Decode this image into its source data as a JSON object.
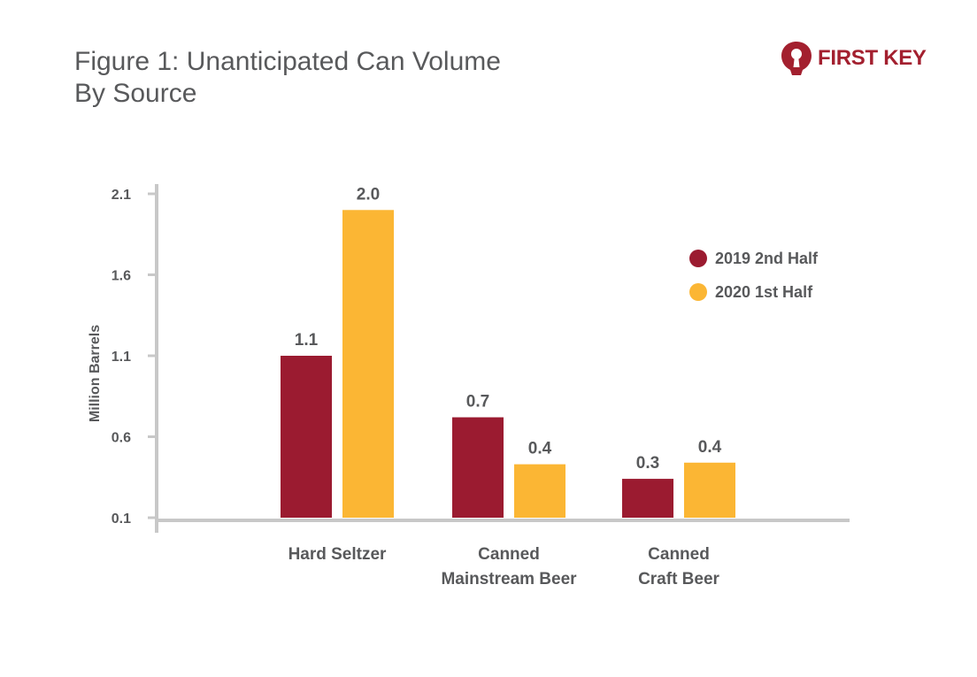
{
  "header": {
    "title_line1": "Figure 1: Unanticipated Can Volume",
    "title_line2": "By Source"
  },
  "brand": {
    "name": "FIRST KEY",
    "color": "#a3202f",
    "icon": "keyhole-icon"
  },
  "chart_data": {
    "type": "bar",
    "title": "Figure 1: Unanticipated Can Volume By Source",
    "ylabel": "Million Barrels",
    "xlabel": "",
    "ylim": [
      0.1,
      2.1
    ],
    "yticks": [
      "2.1",
      "1.6",
      "1.1",
      "0.6",
      "0.1"
    ],
    "categories": [
      [
        "Hard Seltzer"
      ],
      [
        "Canned",
        "Mainstream Beer"
      ],
      [
        "Canned",
        "Craft Beer"
      ]
    ],
    "series": [
      {
        "name": "2019 2nd Half",
        "color": "#9b1b30",
        "values": [
          1.1,
          0.72,
          0.34
        ],
        "labels": [
          "1.1",
          "0.7",
          "0.3"
        ]
      },
      {
        "name": "2020 1st Half",
        "color": "#fbb634",
        "values": [
          2.0,
          0.43,
          0.44
        ],
        "labels": [
          "2.0",
          "0.4",
          "0.4"
        ]
      }
    ],
    "grid": false,
    "legend_position": "top-right",
    "axis_color": "#c8c8c8",
    "text_color": "#58595b"
  }
}
